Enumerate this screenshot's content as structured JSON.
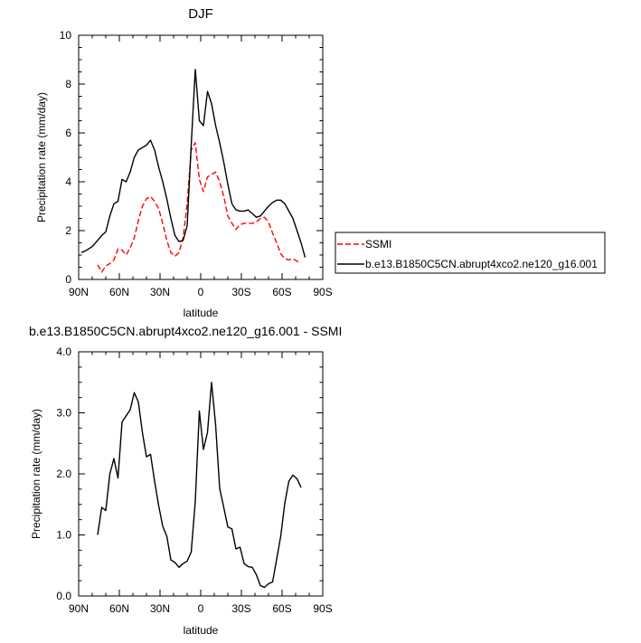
{
  "chart_data": [
    {
      "type": "line",
      "title": "DJF",
      "xlabel": "latitude",
      "ylabel": "Precipitation rate (mm/day)",
      "x_ticks": [
        90,
        60,
        30,
        0,
        -30,
        -60,
        -90
      ],
      "x_tick_labels": [
        "90N",
        "60N",
        "30N",
        "0",
        "30S",
        "60S",
        "90S"
      ],
      "xlim": [
        90,
        -90
      ],
      "y_ticks": [
        0,
        2,
        4,
        6,
        8,
        10
      ],
      "y_tick_labels": [
        "0",
        "2",
        "4",
        "6",
        "8",
        "10"
      ],
      "ylim": [
        0,
        10
      ],
      "grid": false,
      "legend_position": "right",
      "series": [
        {
          "name": "SSMI",
          "color": "#ff0000",
          "style": "dashed",
          "x": [
            76,
            73,
            70,
            67,
            64,
            61,
            58,
            55,
            52,
            49,
            46,
            43,
            40,
            37,
            34,
            31,
            28,
            25,
            22,
            19,
            16,
            13,
            10,
            7,
            4,
            1,
            -2,
            -5,
            -8,
            -11,
            -14,
            -17,
            -20,
            -23,
            -26,
            -29,
            -32,
            -35,
            -38,
            -41,
            -44,
            -47,
            -50,
            -53,
            -56,
            -59,
            -62,
            -65,
            -68,
            -71,
            -74
          ],
          "y": [
            0.6,
            0.3,
            0.55,
            0.65,
            0.8,
            1.25,
            1.2,
            1.0,
            1.3,
            1.7,
            2.4,
            3.0,
            3.3,
            3.4,
            3.2,
            2.9,
            2.3,
            1.6,
            1.1,
            0.95,
            1.1,
            1.7,
            3.1,
            5.3,
            5.6,
            4.1,
            3.6,
            4.2,
            4.3,
            4.4,
            4.0,
            3.4,
            2.6,
            2.3,
            2.05,
            2.25,
            2.3,
            2.3,
            2.3,
            2.35,
            2.5,
            2.55,
            2.35,
            1.9,
            1.5,
            1.05,
            0.85,
            0.8,
            0.85,
            0.75,
            0.7
          ]
        },
        {
          "name": "b.e13.B1850C5CN.abrupt4xco2.ne120_g16.001",
          "color": "#000000",
          "style": "solid",
          "x": [
            88,
            84,
            80,
            76,
            73,
            70,
            67,
            64,
            61,
            58,
            55,
            52,
            49,
            46,
            43,
            40,
            37,
            34,
            31,
            28,
            25,
            22,
            19,
            16,
            13,
            10,
            7,
            4,
            1,
            -2,
            -5,
            -8,
            -11,
            -14,
            -17,
            -20,
            -23,
            -26,
            -29,
            -32,
            -35,
            -38,
            -41,
            -44,
            -47,
            -50,
            -53,
            -56,
            -59,
            -62,
            -65,
            -68,
            -71,
            -74,
            -77
          ],
          "y": [
            1.1,
            1.2,
            1.35,
            1.6,
            1.8,
            1.95,
            2.6,
            3.1,
            3.2,
            4.1,
            4.0,
            4.4,
            5.0,
            5.3,
            5.4,
            5.5,
            5.7,
            5.3,
            4.6,
            4.0,
            3.3,
            2.5,
            1.8,
            1.55,
            1.6,
            2.2,
            5.5,
            8.6,
            6.5,
            6.3,
            7.7,
            7.2,
            6.3,
            5.6,
            4.8,
            3.9,
            3.1,
            2.85,
            2.8,
            2.8,
            2.85,
            2.7,
            2.55,
            2.6,
            2.8,
            3.0,
            3.15,
            3.25,
            3.25,
            3.1,
            2.8,
            2.5,
            2.0,
            1.5,
            0.9
          ]
        }
      ]
    },
    {
      "type": "line",
      "title": "b.e13.B1850C5CN.abrupt4xco2.ne120_g16.001 - SSMI",
      "xlabel": "latitude",
      "ylabel": "Precipitation rate (mm/day)",
      "x_ticks": [
        90,
        60,
        30,
        0,
        -30,
        -60,
        -90
      ],
      "x_tick_labels": [
        "90N",
        "60N",
        "30N",
        "0",
        "30S",
        "60S",
        "90S"
      ],
      "xlim": [
        90,
        -90
      ],
      "y_ticks": [
        0,
        1,
        2,
        3,
        4
      ],
      "y_tick_labels": [
        "0.0",
        "1.0",
        "2.0",
        "3.0",
        "4.0"
      ],
      "ylim": [
        0,
        4
      ],
      "grid": false,
      "series": [
        {
          "color": "#000000",
          "style": "solid",
          "x": [
            76,
            73,
            70,
            67,
            64,
            61,
            58,
            55,
            52,
            49,
            46,
            43,
            40,
            37,
            34,
            31,
            28,
            25,
            22,
            19,
            16,
            13,
            10,
            7,
            4,
            1,
            -2,
            -5,
            -8,
            -11,
            -14,
            -17,
            -20,
            -23,
            -26,
            -29,
            -32,
            -35,
            -38,
            -41,
            -44,
            -47,
            -50,
            -53,
            -56,
            -59,
            -62,
            -65,
            -68,
            -71,
            -74
          ],
          "y": [
            1.0,
            1.45,
            1.4,
            2.0,
            2.25,
            1.93,
            2.85,
            2.95,
            3.05,
            3.33,
            3.18,
            2.68,
            2.28,
            2.32,
            1.88,
            1.48,
            1.14,
            0.98,
            0.59,
            0.55,
            0.47,
            0.53,
            0.57,
            0.72,
            1.55,
            3.03,
            2.4,
            2.68,
            3.5,
            2.8,
            1.76,
            1.45,
            1.13,
            1.1,
            0.77,
            0.8,
            0.53,
            0.48,
            0.47,
            0.35,
            0.17,
            0.14,
            0.2,
            0.23,
            0.6,
            0.98,
            1.52,
            1.88,
            1.98,
            1.92,
            1.78
          ]
        }
      ]
    }
  ]
}
